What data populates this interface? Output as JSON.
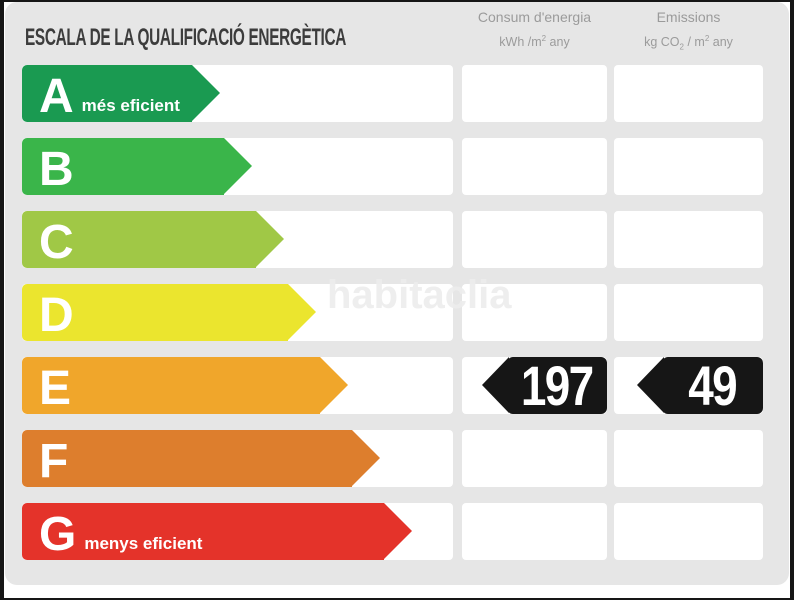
{
  "title": "ESCALA DE LA QUALIFICACIÓ ENERGÈTICA",
  "header": {
    "consum": {
      "line1": "Consum d'energia",
      "unit_main": "kWh /m",
      "unit_sup": "2",
      "unit_tail": " any"
    },
    "emissions": {
      "line1": "Emissions",
      "unit_co": "kg CO",
      "unit_sub": "2",
      "unit_mid": " / m",
      "unit_sup": "2",
      "unit_tail": " any"
    }
  },
  "ratings": [
    {
      "letter": "A",
      "label": "més eficient",
      "color": "#1a9a51",
      "arrow_tip_x": 220
    },
    {
      "letter": "B",
      "label": "",
      "color": "#3ab54a",
      "arrow_tip_x": 252
    },
    {
      "letter": "C",
      "label": "",
      "color": "#a0c846",
      "arrow_tip_x": 284
    },
    {
      "letter": "D",
      "label": "",
      "color": "#ebe52e",
      "arrow_tip_x": 316
    },
    {
      "letter": "E",
      "label": "",
      "color": "#f0a62b",
      "arrow_tip_x": 348
    },
    {
      "letter": "F",
      "label": "",
      "color": "#dd7e2d",
      "arrow_tip_x": 380
    },
    {
      "letter": "G",
      "label": "menys eficient",
      "color": "#e4332a",
      "arrow_tip_x": 412
    }
  ],
  "values": {
    "rating": "E",
    "consum": "197",
    "emissions": "49",
    "arrow_color": "#161616"
  },
  "watermark": "habitaclia",
  "colors": {
    "panel": "#e6e6e6",
    "cell": "#ffffff",
    "frame": "#161616",
    "title_text": "#3c3c3c",
    "header_text": "#9b9b9b"
  },
  "chart_data": {
    "type": "bar",
    "title": "ESCALA DE LA QUALIFICACIÓ ENERGÈTICA",
    "categories": [
      "A",
      "B",
      "C",
      "D",
      "E",
      "F",
      "G"
    ],
    "series": [
      {
        "name": "energy-rating-arrow-length",
        "values": [
          220,
          252,
          284,
          316,
          348,
          380,
          412
        ],
        "unit": "px"
      }
    ],
    "annotations": {
      "rated_letter": "E",
      "consum_kwh_m2_any": 197,
      "emissions_kg_co2_m2_any": 49,
      "best_label": "A més eficient",
      "worst_label": "G menys eficient"
    },
    "legend": [
      "Consum d'energia (kWh/m² any)",
      "Emissions (kg CO₂/m² any)"
    ],
    "layout_hints": {
      "orientation": "horizontal",
      "grid": false,
      "legend_position": "top-right-columns"
    }
  }
}
